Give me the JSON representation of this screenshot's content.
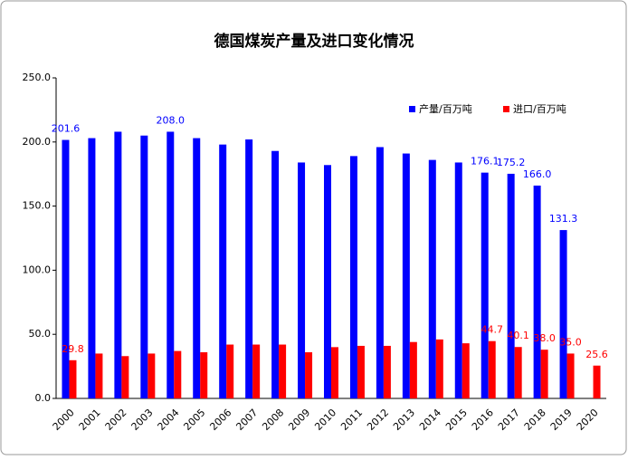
{
  "chart_data": {
    "type": "bar",
    "title": "德国煤炭产量及进口变化情况",
    "categories": [
      "2000",
      "2001",
      "2002",
      "2003",
      "2004",
      "2005",
      "2006",
      "2007",
      "2008",
      "2009",
      "2010",
      "2011",
      "2012",
      "2013",
      "2014",
      "2015",
      "2016",
      "2017",
      "2018",
      "2019",
      "2020"
    ],
    "series": [
      {
        "name": "产量/百万吨",
        "color": "#0000ff",
        "values": [
          201.6,
          203,
          208,
          205,
          208.0,
          203,
          198,
          202,
          193,
          184,
          182,
          189,
          196,
          191,
          186,
          184,
          176.1,
          175.2,
          166.0,
          131.3,
          null
        ],
        "value_labels": [
          "201.6",
          null,
          null,
          null,
          "208.0",
          null,
          null,
          null,
          null,
          null,
          null,
          null,
          null,
          null,
          null,
          null,
          "176.1",
          "175.2",
          "166.0",
          "131.3",
          null
        ]
      },
      {
        "name": "进口/百万吨",
        "color": "#ff0000",
        "values": [
          29.8,
          35,
          33,
          35,
          37,
          36,
          42,
          42,
          42,
          36,
          40,
          41,
          41,
          44,
          46,
          43,
          44.7,
          40.1,
          38.0,
          35.0,
          25.6
        ],
        "value_labels": [
          "29.8",
          null,
          null,
          null,
          null,
          null,
          null,
          null,
          null,
          null,
          null,
          null,
          null,
          null,
          null,
          null,
          "44.7",
          "40.1",
          "38.0",
          "35.0",
          "25.6"
        ]
      }
    ],
    "ylim": [
      0,
      250
    ],
    "yticks": [
      {
        "value": 0,
        "label": "0.0"
      },
      {
        "value": 50,
        "label": "50.0"
      },
      {
        "value": 100,
        "label": "100.0"
      },
      {
        "value": 150,
        "label": "150.0"
      },
      {
        "value": 200,
        "label": "200.0"
      },
      {
        "value": 250,
        "label": "250.0"
      }
    ],
    "legend": "top-right"
  }
}
